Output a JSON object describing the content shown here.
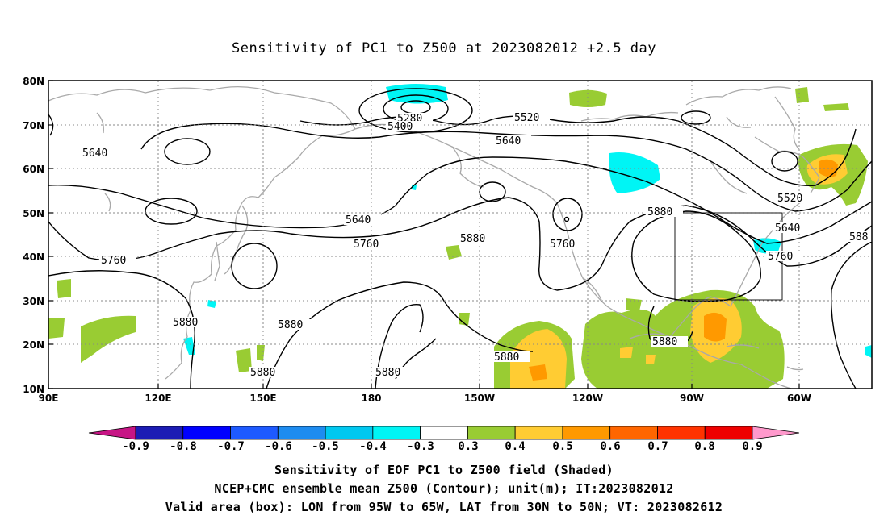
{
  "title": "Sensitivity of PC1 to Z500 at 2023082012 +2.5 day",
  "axes": {
    "lat_labels": [
      "80N",
      "70N",
      "60N",
      "50N",
      "40N",
      "30N",
      "20N",
      "10N"
    ],
    "lon_labels": [
      "90E",
      "120E",
      "150E",
      "180",
      "150W",
      "120W",
      "90W",
      "60W"
    ]
  },
  "contour_labels": {
    "c5280": "5280",
    "c5400": "5400",
    "c5520a": "5520",
    "c5520b": "5520",
    "c5640a": "5640",
    "c5640b": "5640",
    "c5640c": "5640",
    "c5640d": "5640",
    "c5760a": "5760",
    "c5760b": "5760",
    "c5760c": "5760",
    "c5760d": "5760",
    "c5880a": "5880",
    "c5880b": "5880",
    "c5880c": "5880",
    "c5880d": "5880",
    "c5880e": "5880",
    "c5880f": "5880",
    "c5880g": "5880",
    "c5880h": "5880",
    "c588x": "588"
  },
  "colorbar": {
    "labels": [
      "-0.9",
      "-0.8",
      "-0.7",
      "-0.6",
      "-0.5",
      "-0.4",
      "-0.3",
      "0.3",
      "0.4",
      "0.5",
      "0.6",
      "0.7",
      "0.8",
      "0.9"
    ],
    "colors": [
      "#1c1cb4",
      "#0000ff",
      "#1e5aff",
      "#1e8cf0",
      "#00c8f0",
      "#00f5f5",
      "#ffffff",
      "#99cc33",
      "#ffcc33",
      "#ff9900",
      "#ff6600",
      "#ff3300",
      "#ee0000"
    ],
    "low_arrow_color": "#c71585",
    "high_arrow_color": "#ff99cc"
  },
  "captions": {
    "line1": "Sensitivity of EOF PC1 to Z500 field (Shaded)",
    "line2": "NCEP+CMC ensemble mean Z500 (Contour); unit(m); IT:2023082012",
    "line3": "Valid area (box): LON from 95W to 65W, LAT from 30N to 50N; VT: 2023082612"
  }
}
